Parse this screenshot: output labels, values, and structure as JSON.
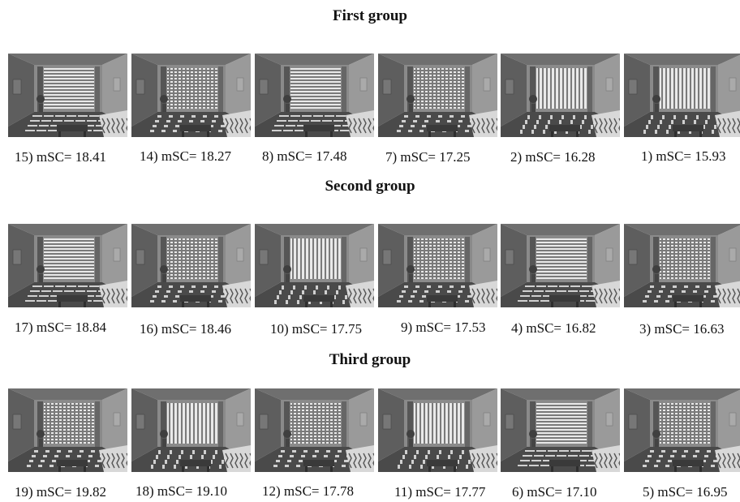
{
  "groups": [
    {
      "title": "First group",
      "items": [
        {
          "label": "15) mSC= 18.41",
          "pattern": "horizontal"
        },
        {
          "label": "14) mSC= 18.27",
          "pattern": "grid"
        },
        {
          "label": "8) mSC= 17.48",
          "pattern": "horizontal"
        },
        {
          "label": "7) mSC= 17.25",
          "pattern": "grid"
        },
        {
          "label": "2) mSC= 16.28",
          "pattern": "vertical"
        },
        {
          "label": "1) mSC= 15.93",
          "pattern": "vertical"
        }
      ]
    },
    {
      "title": "Second group",
      "items": [
        {
          "label": "17) mSC= 18.84",
          "pattern": "horizontal"
        },
        {
          "label": "16) mSC= 18.46",
          "pattern": "grid"
        },
        {
          "label": "10) mSC= 17.75",
          "pattern": "vertical"
        },
        {
          "label": "9) mSC= 17.53",
          "pattern": "grid"
        },
        {
          "label": "4) mSC= 16.82",
          "pattern": "horizontal"
        },
        {
          "label": "3) mSC= 16.63",
          "pattern": "grid"
        }
      ]
    },
    {
      "title": "Third group",
      "items": [
        {
          "label": "19) mSC= 19.82",
          "pattern": "grid"
        },
        {
          "label": "18) mSC= 19.10",
          "pattern": "vertical"
        },
        {
          "label": "12) mSC= 17.78",
          "pattern": "grid"
        },
        {
          "label": "11) mSC= 17.77",
          "pattern": "vertical"
        },
        {
          "label": "6) mSC= 17.10",
          "pattern": "horizontal"
        },
        {
          "label": "5) mSC= 16.95",
          "pattern": "grid"
        }
      ]
    }
  ]
}
